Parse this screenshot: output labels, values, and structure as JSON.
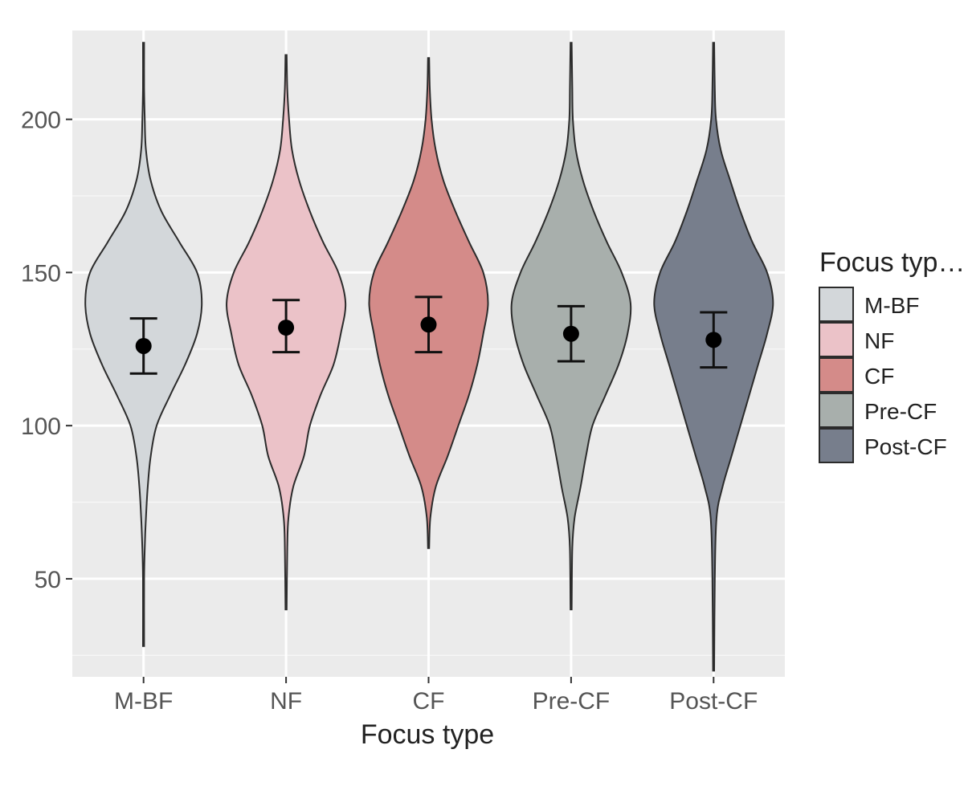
{
  "chart_data": {
    "type": "violin",
    "xlabel": "Focus type",
    "ylabel": "",
    "ylim": [
      18,
      229
    ],
    "yticks": [
      50,
      100,
      150,
      200
    ],
    "grid": true,
    "legend": {
      "title": "Focus typ…",
      "placement": "right",
      "entries": [
        "M-BF",
        "NF",
        "CF",
        "Pre-CF",
        "Post-CF"
      ]
    },
    "categories": [
      "M-BF",
      "NF",
      "CF",
      "Pre-CF",
      "Post-CF"
    ],
    "series": [
      {
        "name": "M-BF",
        "color": "#d3d7da",
        "mean": 126,
        "ci_low": 117,
        "ci_high": 135,
        "min": 28,
        "max": 225,
        "density": [
          [
            28,
            0.01
          ],
          [
            50,
            0.01
          ],
          [
            60,
            0.02
          ],
          [
            70,
            0.04
          ],
          [
            80,
            0.07
          ],
          [
            90,
            0.12
          ],
          [
            100,
            0.22
          ],
          [
            110,
            0.45
          ],
          [
            120,
            0.7
          ],
          [
            130,
            0.9
          ],
          [
            140,
            0.98
          ],
          [
            150,
            0.9
          ],
          [
            160,
            0.6
          ],
          [
            170,
            0.3
          ],
          [
            180,
            0.12
          ],
          [
            190,
            0.04
          ],
          [
            200,
            0.02
          ],
          [
            210,
            0.01
          ],
          [
            225,
            0.01
          ]
        ]
      },
      {
        "name": "NF",
        "color": "#ebc2c8",
        "mean": 132,
        "ci_low": 124,
        "ci_high": 141,
        "min": 40,
        "max": 221,
        "density": [
          [
            40,
            0.01
          ],
          [
            60,
            0.02
          ],
          [
            70,
            0.04
          ],
          [
            80,
            0.12
          ],
          [
            90,
            0.3
          ],
          [
            100,
            0.4
          ],
          [
            110,
            0.58
          ],
          [
            120,
            0.8
          ],
          [
            130,
            0.92
          ],
          [
            140,
            1.0
          ],
          [
            150,
            0.88
          ],
          [
            160,
            0.62
          ],
          [
            170,
            0.4
          ],
          [
            180,
            0.22
          ],
          [
            190,
            0.1
          ],
          [
            200,
            0.05
          ],
          [
            210,
            0.02
          ],
          [
            221,
            0.01
          ]
        ]
      },
      {
        "name": "CF",
        "color": "#d48b89",
        "mean": 133,
        "ci_low": 124,
        "ci_high": 142,
        "min": 60,
        "max": 220,
        "density": [
          [
            60,
            0.01
          ],
          [
            70,
            0.03
          ],
          [
            80,
            0.12
          ],
          [
            90,
            0.32
          ],
          [
            100,
            0.5
          ],
          [
            110,
            0.68
          ],
          [
            120,
            0.82
          ],
          [
            130,
            0.92
          ],
          [
            140,
            1.0
          ],
          [
            150,
            0.92
          ],
          [
            160,
            0.68
          ],
          [
            170,
            0.45
          ],
          [
            180,
            0.25
          ],
          [
            190,
            0.12
          ],
          [
            200,
            0.05
          ],
          [
            210,
            0.02
          ],
          [
            220,
            0.01
          ]
        ]
      },
      {
        "name": "Pre-CF",
        "color": "#a8afac",
        "mean": 130,
        "ci_low": 121,
        "ci_high": 139,
        "min": 40,
        "max": 225,
        "density": [
          [
            40,
            0.01
          ],
          [
            60,
            0.02
          ],
          [
            70,
            0.06
          ],
          [
            80,
            0.16
          ],
          [
            90,
            0.25
          ],
          [
            100,
            0.36
          ],
          [
            110,
            0.58
          ],
          [
            120,
            0.8
          ],
          [
            130,
            0.95
          ],
          [
            140,
            1.0
          ],
          [
            150,
            0.85
          ],
          [
            160,
            0.6
          ],
          [
            170,
            0.38
          ],
          [
            180,
            0.2
          ],
          [
            190,
            0.08
          ],
          [
            200,
            0.03
          ],
          [
            210,
            0.02
          ],
          [
            225,
            0.01
          ]
        ]
      },
      {
        "name": "Post-CF",
        "color": "#777e8c",
        "mean": 128,
        "ci_low": 119,
        "ci_high": 137,
        "min": 20,
        "max": 225,
        "density": [
          [
            20,
            0.01
          ],
          [
            50,
            0.02
          ],
          [
            70,
            0.05
          ],
          [
            80,
            0.15
          ],
          [
            90,
            0.3
          ],
          [
            100,
            0.45
          ],
          [
            110,
            0.6
          ],
          [
            120,
            0.75
          ],
          [
            130,
            0.9
          ],
          [
            140,
            1.0
          ],
          [
            150,
            0.9
          ],
          [
            160,
            0.65
          ],
          [
            170,
            0.45
          ],
          [
            180,
            0.28
          ],
          [
            190,
            0.12
          ],
          [
            200,
            0.04
          ],
          [
            210,
            0.02
          ],
          [
            225,
            0.01
          ]
        ]
      }
    ]
  }
}
